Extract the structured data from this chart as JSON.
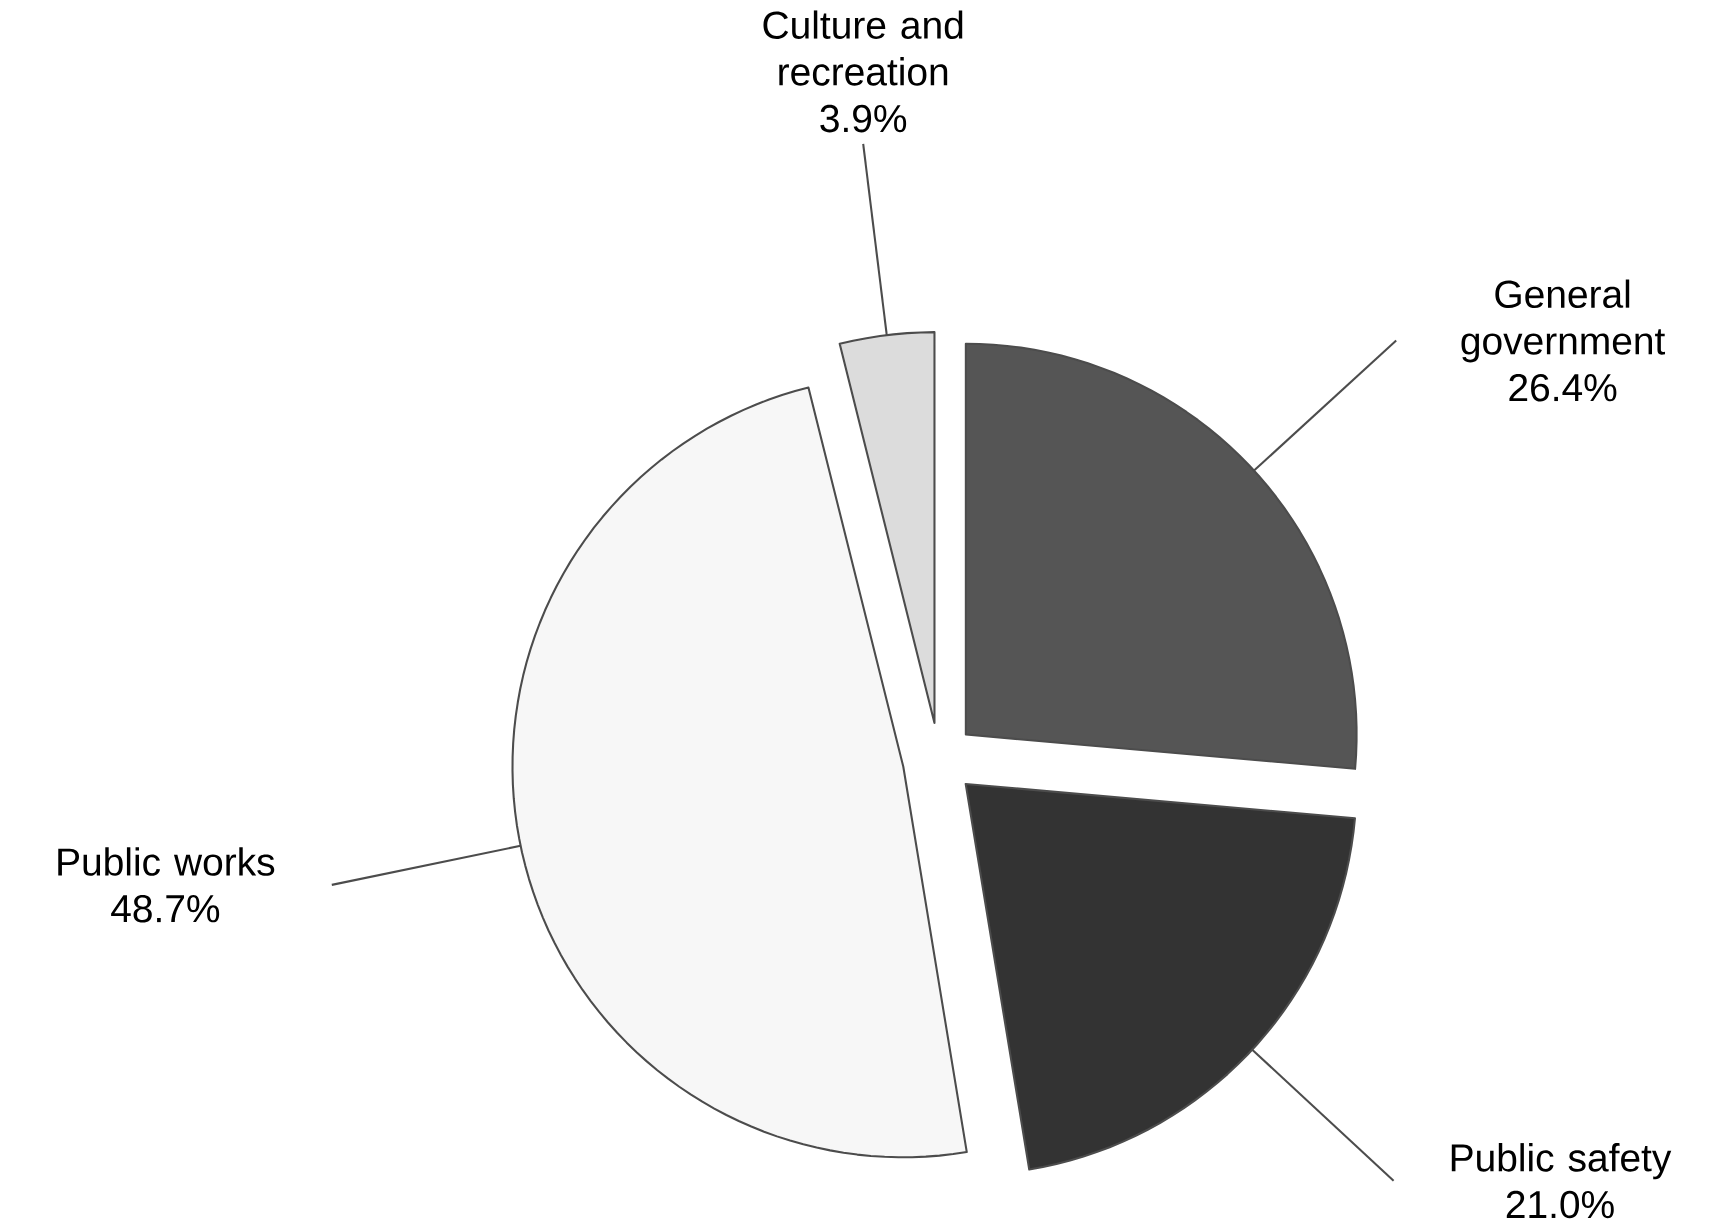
{
  "chart_data": {
    "type": "pie",
    "categories": [
      "General government",
      "Public safety",
      "Public works",
      "Culture and recreation"
    ],
    "values": [
      26.4,
      21.0,
      48.7,
      3.9
    ],
    "value_labels": [
      "26.4%",
      "21.0%",
      "48.7%",
      "3.9%"
    ],
    "colors": [
      "#555555",
      "#333333",
      "#f7f7f7",
      "#dcdcdc"
    ]
  }
}
